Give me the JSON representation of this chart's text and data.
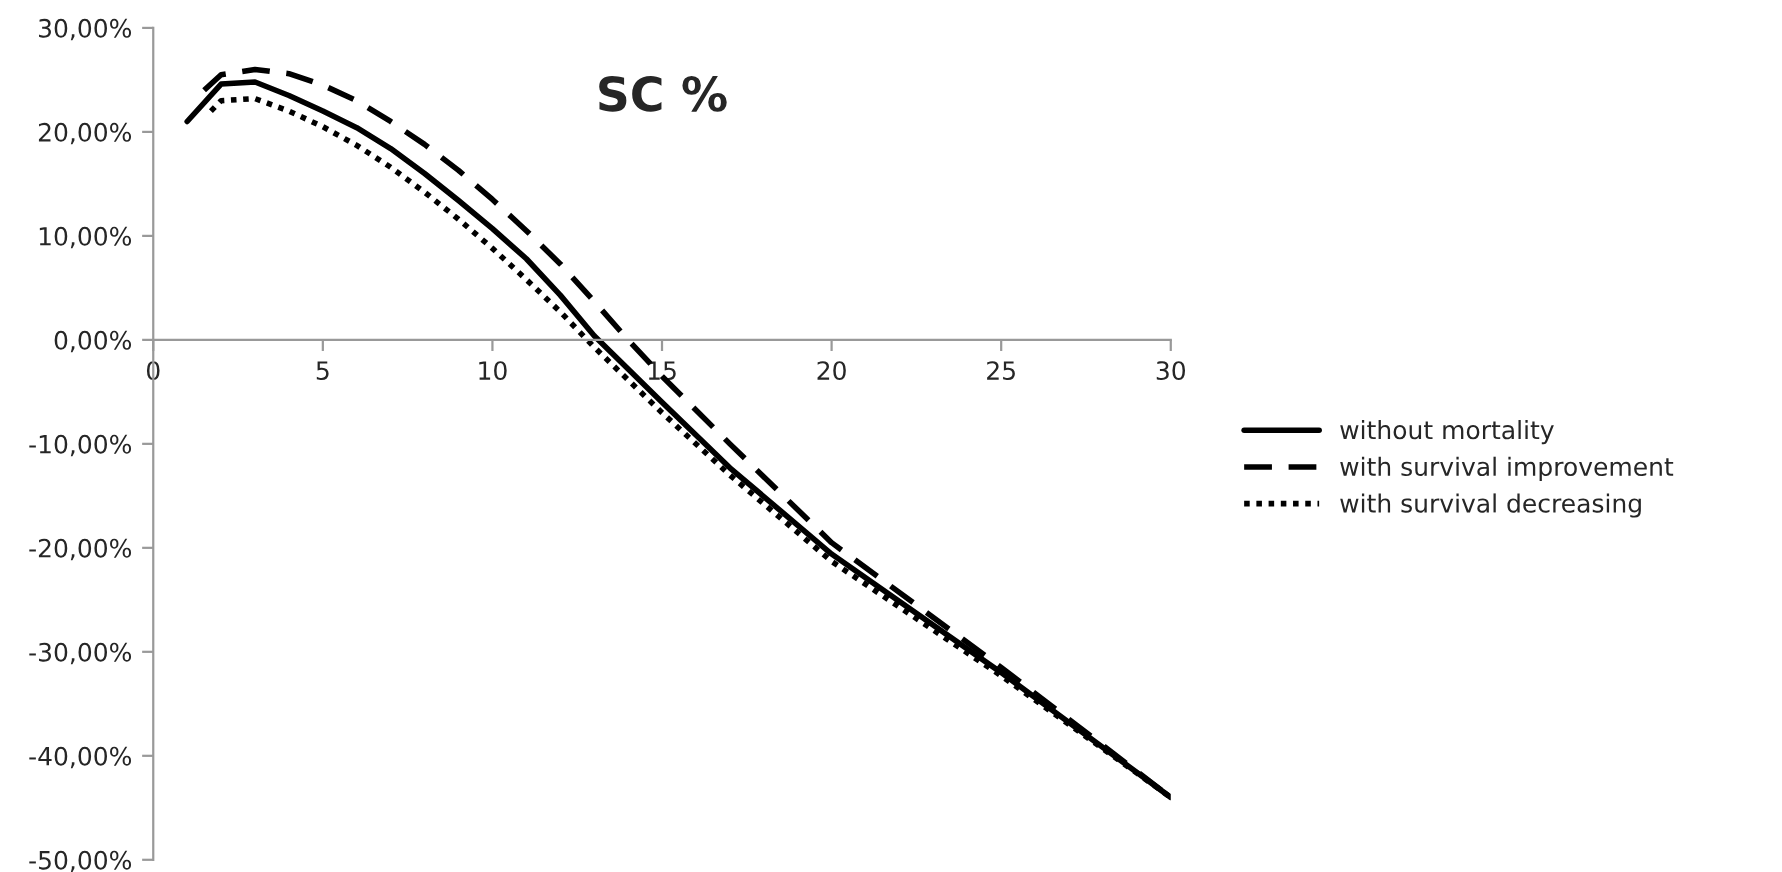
{
  "chart_data": {
    "type": "line",
    "title": "SC %",
    "legend": "right",
    "grid": false,
    "xlim": [
      0,
      30
    ],
    "xticks": [
      0,
      5,
      10,
      15,
      20,
      25,
      30
    ],
    "ylim": [
      -50,
      30
    ],
    "yticks": [
      {
        "value": 30,
        "label": "30,00%"
      },
      {
        "value": 20,
        "label": "20,00%"
      },
      {
        "value": 10,
        "label": "10,00%"
      },
      {
        "value": 0,
        "label": "0,00%"
      },
      {
        "value": -10,
        "label": "-10,00%"
      },
      {
        "value": -20,
        "label": "-20,00%"
      },
      {
        "value": -30,
        "label": "-30,00%"
      },
      {
        "value": -40,
        "label": "-40,00%"
      },
      {
        "value": -50,
        "label": "-50,00%"
      }
    ],
    "series": [
      {
        "name": "without mortality",
        "color": "#000000",
        "line_style": "solid",
        "x": [
          1,
          2,
          3,
          4,
          5,
          6,
          7,
          8,
          9,
          10,
          11,
          12,
          13,
          15,
          17,
          20,
          25,
          30
        ],
        "values": [
          21,
          24.6,
          24.8,
          23.5,
          22,
          20.4,
          18.4,
          16,
          13.4,
          10.7,
          7.8,
          4.3,
          0.4,
          -6,
          -12.3,
          -20.6,
          -32,
          -44
        ]
      },
      {
        "name": "with survival improvement",
        "color": "#000000",
        "line_style": "dashed",
        "x": [
          1.5,
          2,
          3,
          4,
          5,
          6,
          7,
          8,
          9,
          10,
          11,
          12,
          13,
          14,
          15,
          17,
          20,
          25,
          30
        ],
        "values": [
          24,
          25.5,
          26,
          25.6,
          24.5,
          23,
          21,
          18.8,
          16.3,
          13.5,
          10.5,
          7.3,
          3.7,
          0,
          -3.5,
          -10,
          -19.5,
          -31.5,
          -44
        ]
      },
      {
        "name": "with survival decreasing",
        "color": "#000000",
        "line_style": "dotted",
        "x": [
          1.7,
          2,
          3,
          4,
          5,
          6,
          7,
          8,
          9,
          10,
          11,
          12,
          13,
          15,
          17,
          20,
          25,
          30
        ],
        "values": [
          22,
          23,
          23.2,
          22,
          20.5,
          18.7,
          16.6,
          14.2,
          11.6,
          8.8,
          5.8,
          2.7,
          -0.7,
          -7,
          -13,
          -21.3,
          -32.3,
          -44
        ]
      }
    ]
  }
}
